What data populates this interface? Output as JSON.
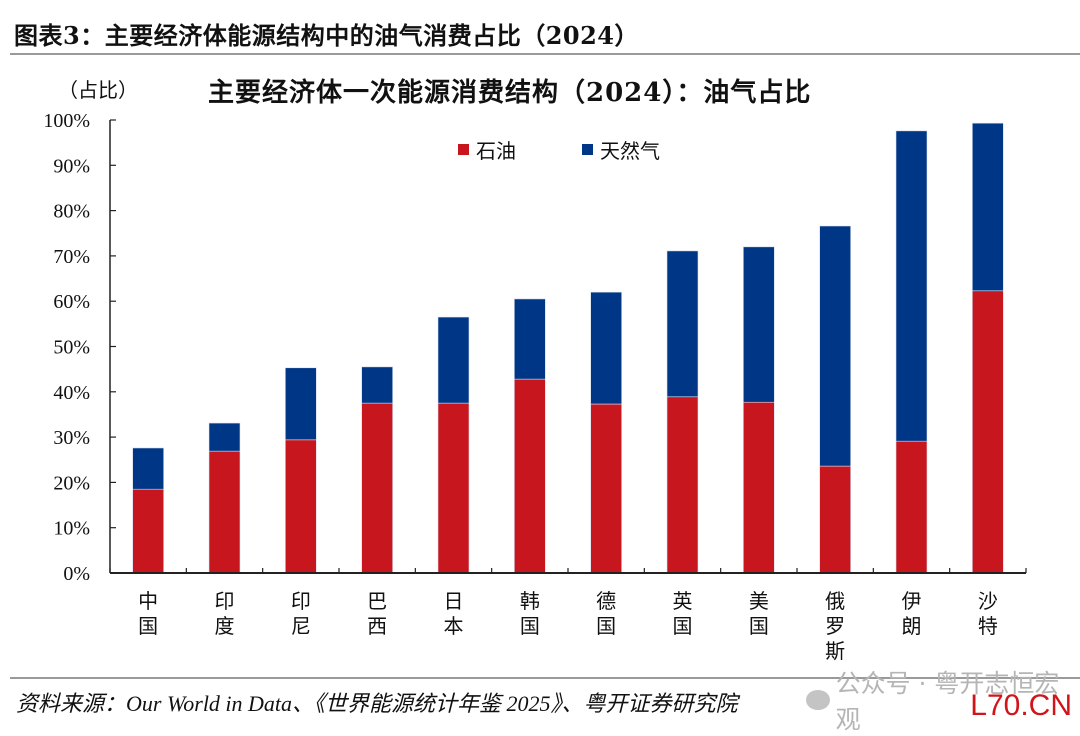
{
  "figure": {
    "title": "图表3：主要经济体能源结构中的油气消费占比（2024）",
    "source": "资料来源：Our World in Data、《世界能源统计年鉴 2025》、粤开证券研究院",
    "watermark": "公众号 · 粤开志恒宏观",
    "site_mark": "L70.CN"
  },
  "chart_data": {
    "type": "bar",
    "stacked": true,
    "title": "主要经济体一次能源消费结构（2024）：油气占比",
    "ylabel": "（占比）",
    "xlabel": "",
    "ylim": [
      0,
      100
    ],
    "yticks": [
      "0%",
      "10%",
      "20%",
      "30%",
      "40%",
      "50%",
      "60%",
      "70%",
      "80%",
      "90%",
      "100%"
    ],
    "grid": false,
    "legend_position": "top-center",
    "categories": [
      "中国",
      "印度",
      "印尼",
      "巴西",
      "日本",
      "韩国",
      "德国",
      "英国",
      "美国",
      "俄罗斯",
      "伊朗",
      "沙特"
    ],
    "series": [
      {
        "name": "石油",
        "color": "#c8161e",
        "values": [
          18.5,
          26.9,
          29.4,
          37.5,
          37.5,
          42.8,
          37.3,
          38.9,
          37.7,
          23.6,
          29.1,
          62.3
        ]
      },
      {
        "name": "天然气",
        "color": "#003686",
        "values": [
          9.1,
          6.2,
          15.9,
          8.0,
          19.0,
          17.7,
          24.7,
          32.2,
          34.3,
          53.0,
          68.5,
          37.0
        ]
      }
    ]
  }
}
